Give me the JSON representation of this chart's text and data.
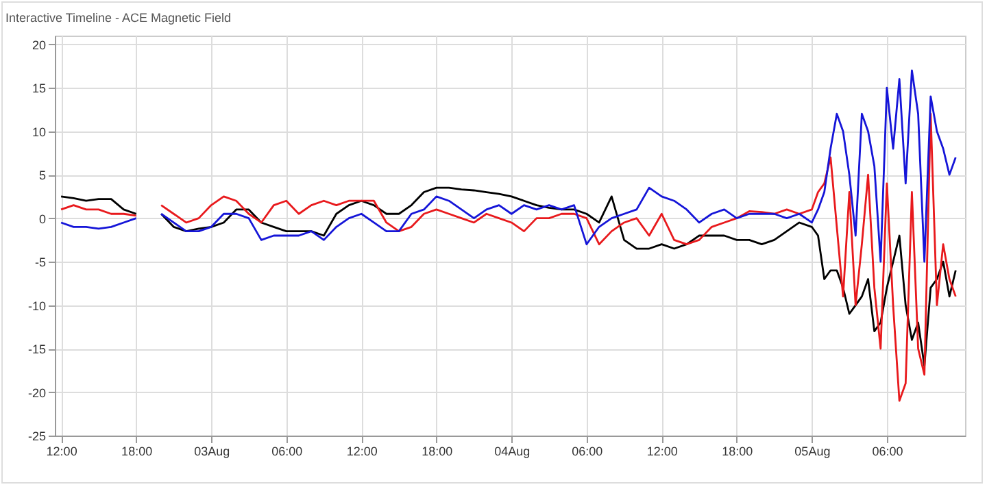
{
  "chart_data": {
    "type": "line",
    "title": "Interactive Timeline - ACE Magnetic Field",
    "x": [
      "--08-02T12:00",
      "--08-02T13:00",
      "--08-02T14:00",
      "--08-02T15:00",
      "--08-02T16:00",
      "--08-02T17:00",
      "--08-02T18:00",
      "--08-02T19:00",
      "--08-02T20:00",
      "--08-02T21:00",
      "--08-02T22:00",
      "--08-02T23:00",
      "--08-03T00:00",
      "--08-03T01:00",
      "--08-03T02:00",
      "--08-03T03:00",
      "--08-03T04:00",
      "--08-03T05:00",
      "--08-03T06:00",
      "--08-03T07:00",
      "--08-03T08:00",
      "--08-03T09:00",
      "--08-03T10:00",
      "--08-03T11:00",
      "--08-03T12:00",
      "--08-03T13:00",
      "--08-03T14:00",
      "--08-03T15:00",
      "--08-03T16:00",
      "--08-03T17:00",
      "--08-03T18:00",
      "--08-03T19:00",
      "--08-03T20:00",
      "--08-03T21:00",
      "--08-03T22:00",
      "--08-03T23:00",
      "--08-04T00:00",
      "--08-04T01:00",
      "--08-04T02:00",
      "--08-04T03:00",
      "--08-04T04:00",
      "--08-04T05:00",
      "--08-04T06:00",
      "--08-04T07:00",
      "--08-04T08:00",
      "--08-04T09:00",
      "--08-04T10:00",
      "--08-04T11:00",
      "--08-04T12:00",
      "--08-04T13:00",
      "--08-04T14:00",
      "--08-04T15:00",
      "--08-04T16:00",
      "--08-04T17:00",
      "--08-04T18:00",
      "--08-04T19:00",
      "--08-04T20:00",
      "--08-04T21:00",
      "--08-04T22:00",
      "--08-04T23:00",
      "--08-05T00:00",
      "--08-05T00:30",
      "--08-05T01:00",
      "--08-05T01:30",
      "--08-05T02:00",
      "--08-05T02:30",
      "--08-05T03:00",
      "--08-05T03:30",
      "--08-05T04:00",
      "--08-05T04:30",
      "--08-05T05:00",
      "--08-05T05:30",
      "--08-05T06:00",
      "--08-05T06:30",
      "--08-05T07:00",
      "--08-05T07:30",
      "--08-05T08:00",
      "--08-05T08:30",
      "--08-05T09:00",
      "--08-05T09:30",
      "--08-05T10:00",
      "--08-05T10:30",
      "--08-05T11:00",
      "--08-05T11:30"
    ],
    "series": [
      {
        "color": "#000000",
        "values": [
          2.5,
          2.3,
          2,
          2.2,
          2.2,
          1,
          0.5,
          null,
          0.5,
          -1,
          -1.5,
          -1.2,
          -1,
          -0.5,
          1,
          1,
          -0.5,
          -1,
          -1.5,
          -1.5,
          -1.5,
          -2,
          0.5,
          1.5,
          2,
          1.5,
          0.5,
          0.5,
          1.5,
          3,
          3.5,
          3.5,
          3.3,
          3.2,
          3,
          2.8,
          2.5,
          2,
          1.5,
          1.2,
          1,
          1,
          0.5,
          -0.5,
          2.5,
          -2.5,
          -3.5,
          -3.5,
          -3,
          -3.5,
          -3,
          -2,
          -2,
          -2,
          -2.5,
          -2.5,
          -3,
          -2.5,
          -1.5,
          -0.5,
          -1,
          -2,
          -7,
          -6,
          -6,
          -8,
          -11,
          -10,
          -9,
          -7,
          -13,
          -12,
          -8,
          -5,
          -2,
          -10,
          -14,
          -12,
          -17,
          -8,
          -7,
          -5,
          -9,
          -6
        ]
      },
      {
        "color": "#e8191c",
        "values": [
          1,
          1.5,
          1,
          1,
          0.5,
          0.5,
          0.3,
          null,
          1.5,
          0.5,
          -0.5,
          0,
          1.5,
          2.5,
          2,
          0.5,
          -0.5,
          1.5,
          2,
          0.5,
          1.5,
          2,
          1.5,
          2,
          2,
          2,
          -0.5,
          -1.5,
          -1,
          0.5,
          1,
          0.5,
          0,
          -0.5,
          0.5,
          0,
          -0.5,
          -1.5,
          0,
          0,
          0.5,
          0.5,
          0,
          -3,
          -1.5,
          -0.5,
          0,
          -2,
          0.5,
          -2.5,
          -3,
          -2.5,
          -1,
          -0.5,
          0,
          0.8,
          0.7,
          0.5,
          1,
          0.5,
          1,
          3,
          4,
          7,
          -1,
          -9,
          3,
          -10,
          -3,
          5,
          -8,
          -15,
          4,
          -10,
          -21,
          -19,
          3,
          -15,
          -18,
          12,
          -10,
          -3,
          -7,
          -9
        ]
      },
      {
        "color": "#1515d8",
        "values": [
          -0.5,
          -1,
          -1,
          -1.2,
          -1,
          -0.5,
          0,
          null,
          0.5,
          -0.5,
          -1.5,
          -1.5,
          -1,
          0.5,
          0.5,
          0,
          -2.5,
          -2,
          -2,
          -2,
          -1.5,
          -2.5,
          -1,
          0,
          0.5,
          -0.5,
          -1.5,
          -1.5,
          0.5,
          1,
          2.5,
          2,
          1,
          0,
          1,
          1.5,
          0.5,
          1.5,
          1,
          1.5,
          1,
          1.5,
          -3,
          -1,
          0,
          0.5,
          1,
          3.5,
          2.5,
          2,
          1,
          -0.5,
          0.5,
          1,
          0,
          0.5,
          0.5,
          0.5,
          0,
          0.5,
          -0.5,
          1,
          3,
          8,
          12,
          10,
          5,
          -2,
          12,
          10,
          6,
          -5,
          15,
          8,
          16,
          4,
          17,
          12,
          -5,
          14,
          10,
          8,
          5,
          7
        ]
      }
    ],
    "xlim": [
      "--08-02T11:30",
      "--08-05T12:15"
    ],
    "xticks": [
      {
        "value": "--08-02T12:00",
        "label": "12:00"
      },
      {
        "value": "--08-02T18:00",
        "label": "18:00"
      },
      {
        "value": "--08-03T00:00",
        "label": "03Aug"
      },
      {
        "value": "--08-03T06:00",
        "label": "06:00"
      },
      {
        "value": "--08-03T12:00",
        "label": "12:00"
      },
      {
        "value": "--08-03T18:00",
        "label": "18:00"
      },
      {
        "value": "--08-04T00:00",
        "label": "04Aug"
      },
      {
        "value": "--08-04T06:00",
        "label": "06:00"
      },
      {
        "value": "--08-04T12:00",
        "label": "12:00"
      },
      {
        "value": "--08-04T18:00",
        "label": "18:00"
      },
      {
        "value": "--08-05T00:00",
        "label": "05Aug"
      },
      {
        "value": "--08-05T06:00",
        "label": "06:00"
      }
    ],
    "ylim": [
      -25,
      21
    ],
    "yticks": [
      -25,
      -20,
      -15,
      -10,
      -5,
      0,
      5,
      10,
      15,
      20
    ],
    "grid": true
  }
}
